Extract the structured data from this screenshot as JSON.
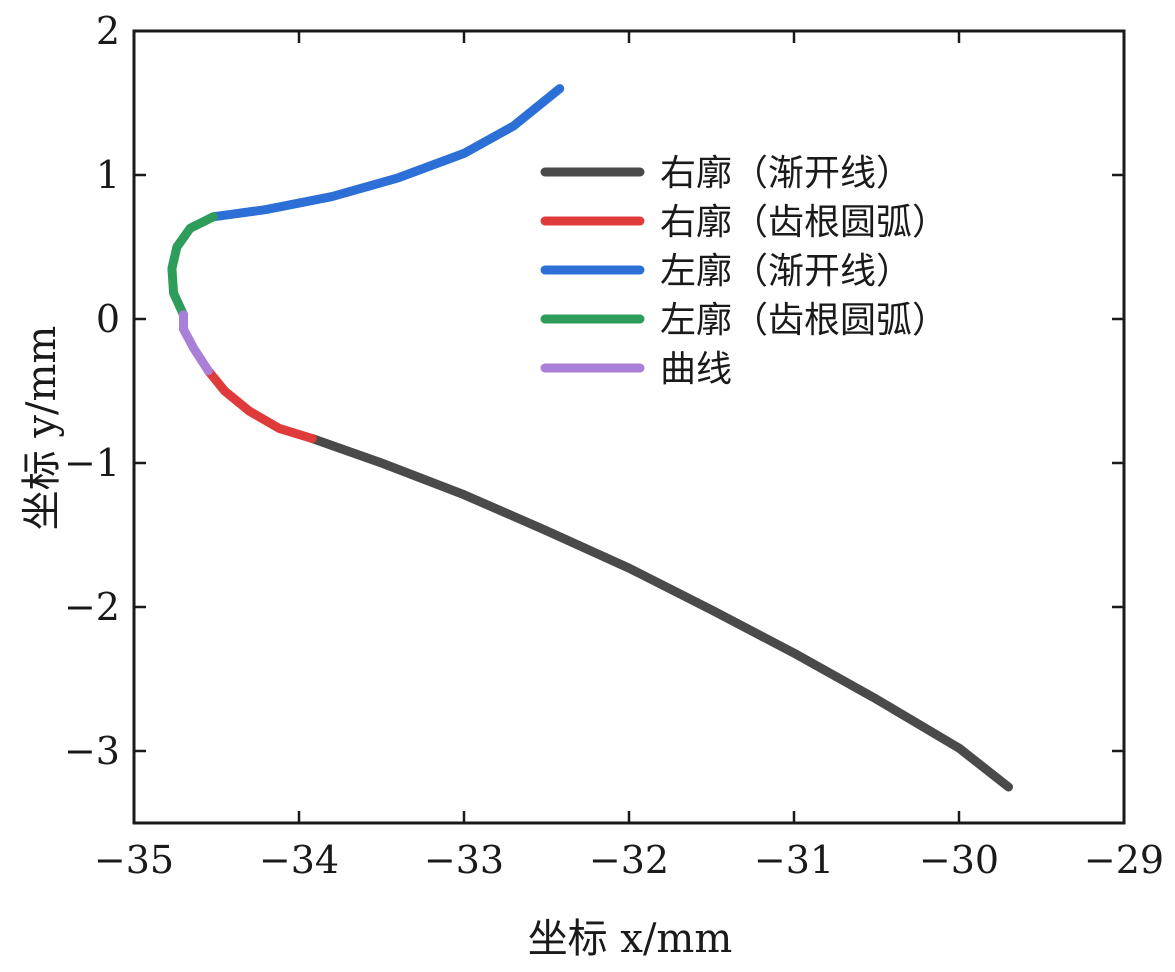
{
  "chart_data": {
    "type": "line",
    "xlabel": "坐标 x/mm",
    "ylabel": "坐标 y/mm",
    "xlim": [
      -35,
      -29
    ],
    "ylim": [
      -3.5,
      2
    ],
    "xticks": [
      -35,
      -34,
      -33,
      -32,
      -31,
      -30,
      -29
    ],
    "yticks": [
      2,
      1,
      0,
      -1,
      -2,
      -3
    ],
    "xtick_labels": [
      "−35",
      "−34",
      "−33",
      "−32",
      "−31",
      "−30",
      "−29"
    ],
    "ytick_labels": [
      "2",
      "1",
      "0",
      "−1",
      "−2",
      "−3"
    ],
    "grid": false,
    "legend_position": "upper-right",
    "series": [
      {
        "name": "右廓（渐开线）",
        "color": "#4a4a4a",
        "points": [
          [
            -33.92,
            -0.83
          ],
          [
            -33.5,
            -1.0
          ],
          [
            -33.0,
            -1.22
          ],
          [
            -32.5,
            -1.47
          ],
          [
            -32.0,
            -1.73
          ],
          [
            -31.5,
            -2.02
          ],
          [
            -31.0,
            -2.32
          ],
          [
            -30.5,
            -2.64
          ],
          [
            -30.0,
            -2.98
          ],
          [
            -29.7,
            -3.25
          ]
        ]
      },
      {
        "name": "右廓（齿根圆弧）",
        "color": "#e03b3b",
        "points": [
          [
            -34.55,
            -0.36
          ],
          [
            -34.45,
            -0.5
          ],
          [
            -34.3,
            -0.64
          ],
          [
            -34.12,
            -0.76
          ],
          [
            -33.92,
            -0.83
          ]
        ]
      },
      {
        "name": "左廓（渐开线）",
        "color": "#2c6fd6",
        "points": [
          [
            -34.52,
            0.71
          ],
          [
            -34.2,
            0.76
          ],
          [
            -33.8,
            0.85
          ],
          [
            -33.4,
            0.98
          ],
          [
            -33.0,
            1.15
          ],
          [
            -32.7,
            1.34
          ],
          [
            -32.42,
            1.6
          ]
        ]
      },
      {
        "name": "左廓（齿根圆弧）",
        "color": "#2e9c5a",
        "points": [
          [
            -34.7,
            0.03
          ],
          [
            -34.76,
            0.18
          ],
          [
            -34.77,
            0.35
          ],
          [
            -34.74,
            0.5
          ],
          [
            -34.66,
            0.63
          ],
          [
            -34.52,
            0.71
          ]
        ]
      },
      {
        "name": "曲线",
        "color": "#a97fd8",
        "points": [
          [
            -34.55,
            -0.36
          ],
          [
            -34.64,
            -0.2
          ],
          [
            -34.7,
            -0.07
          ],
          [
            -34.7,
            0.03
          ]
        ]
      }
    ]
  }
}
